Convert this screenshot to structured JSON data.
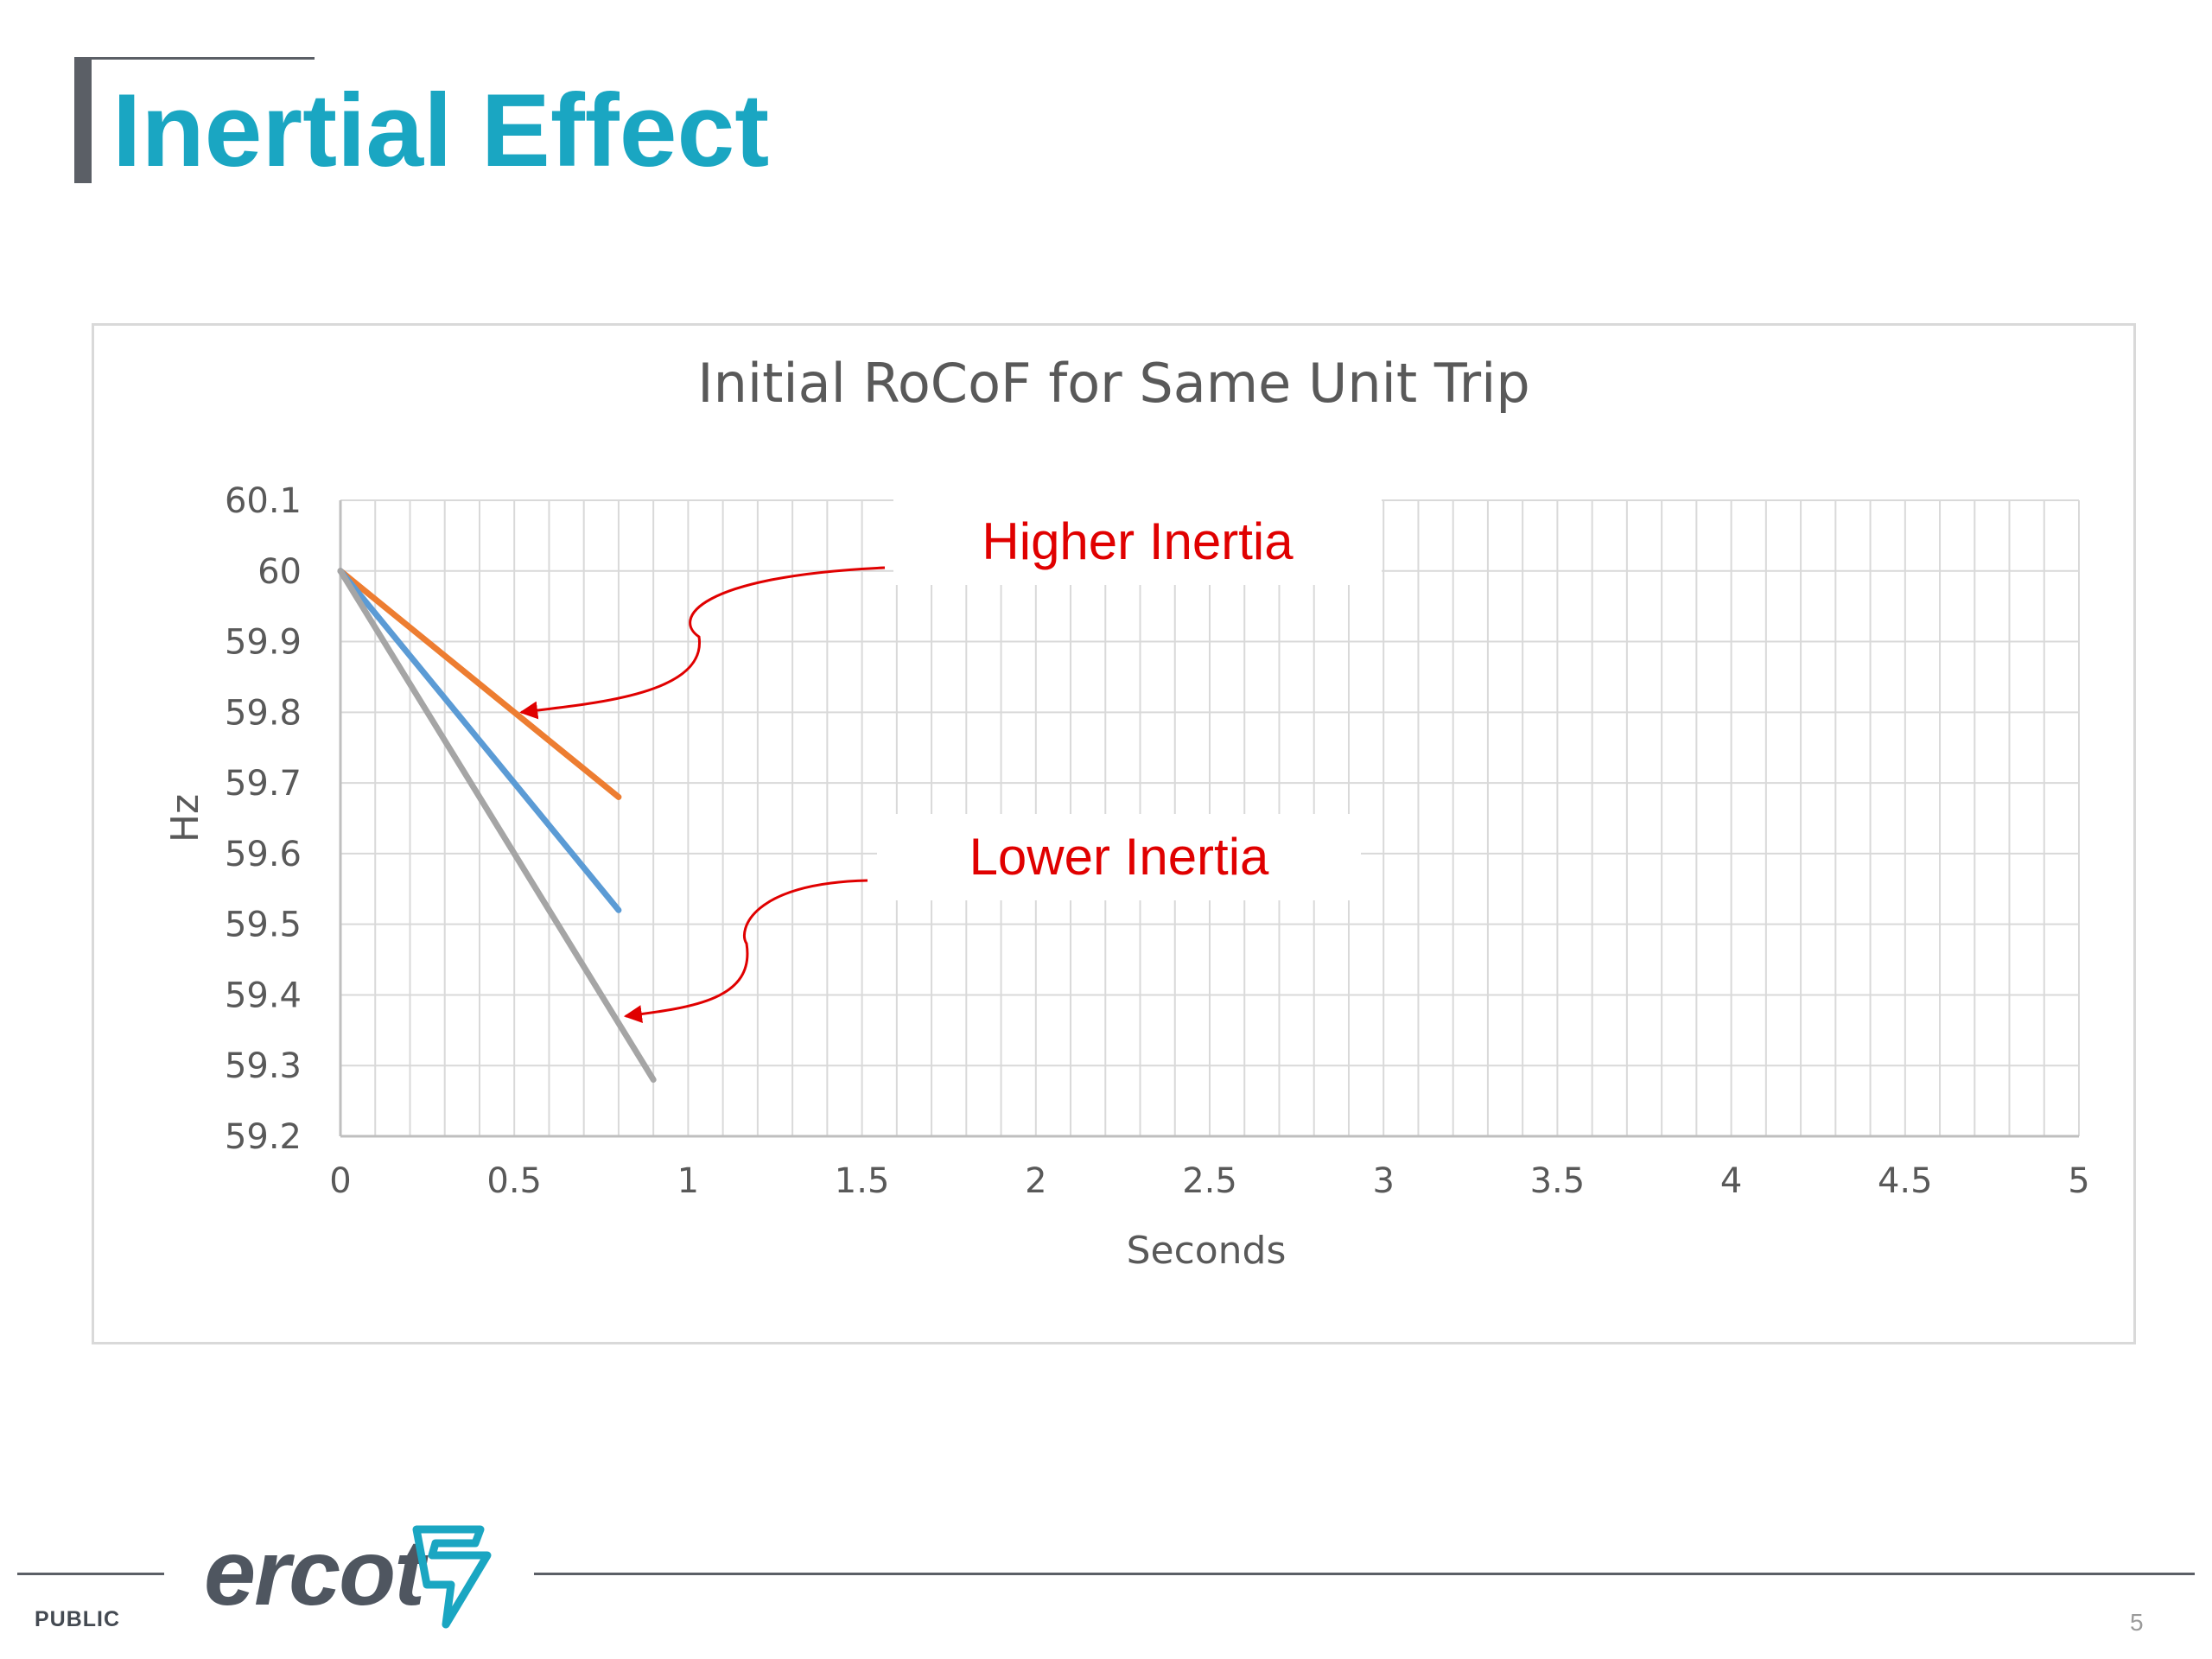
{
  "slide": {
    "title": "Inertial Effect",
    "footer_label": "PUBLIC",
    "page_number": "5",
    "logo_text": "ercot",
    "colors": {
      "title": "#1aa6c2",
      "bar": "#5b5f66",
      "annotation": "#e00000"
    }
  },
  "chart_data": {
    "type": "line",
    "title": "Initial RoCoF for Same Unit Trip",
    "xlabel": "Seconds",
    "ylabel": "Hz",
    "xlim": [
      0,
      5
    ],
    "ylim": [
      59.2,
      60.1
    ],
    "x_ticks": [
      "0",
      "0.5",
      "1",
      "1.5",
      "2",
      "2.5",
      "3",
      "3.5",
      "4",
      "4.5",
      "5"
    ],
    "y_ticks": [
      "60.1",
      "60",
      "59.9",
      "59.8",
      "59.7",
      "59.6",
      "59.5",
      "59.4",
      "59.3",
      "59.2"
    ],
    "grid": true,
    "legend": false,
    "series": [
      {
        "color": "#ed7d31",
        "x": [
          0,
          0.2,
          0.4,
          0.6,
          0.8
        ],
        "y": [
          60.0,
          59.92,
          59.84,
          59.76,
          59.68
        ]
      },
      {
        "color": "#5b9bd5",
        "x": [
          0,
          0.2,
          0.4,
          0.5,
          0.6,
          0.8
        ],
        "y": [
          60.0,
          59.88,
          59.76,
          59.7,
          59.64,
          59.52
        ]
      },
      {
        "color": "#a5a5a5",
        "x": [
          0,
          0.3,
          0.5,
          0.7,
          0.9
        ],
        "y": [
          60.0,
          59.76,
          59.6,
          59.44,
          59.28
        ]
      }
    ],
    "annotations": [
      {
        "text": "Higher Inertia",
        "target_x": 0.52,
        "target_y": 59.8
      },
      {
        "text": "Lower Inertia",
        "target_x": 0.82,
        "target_y": 59.37
      }
    ]
  }
}
